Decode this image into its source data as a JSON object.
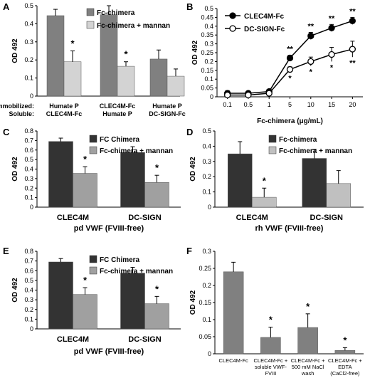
{
  "chart_data": [
    {
      "panel": "A",
      "type": "bar",
      "ylabel": "OD 492",
      "ylim": [
        0,
        0.5
      ],
      "yticks": [
        "0",
        "0.1",
        "0.2",
        "0.3",
        "0.4",
        "0.5"
      ],
      "row_labels": [
        "Immobilized:",
        "Soluble:"
      ],
      "categories": [
        {
          "immobilized": "Humate P",
          "soluble": "CLEC4M-Fc"
        },
        {
          "immobilized": "CLEC4M-Fc",
          "soluble": "Humate P"
        },
        {
          "immobilized": "Humate P",
          "soluble": "DC-SIGN-Fc"
        }
      ],
      "series": [
        {
          "name": "Fc-chimera",
          "color": "#808080",
          "values": [
            0.445,
            0.45,
            0.205
          ],
          "errors": [
            0.035,
            0.05,
            0.05
          ]
        },
        {
          "name": "Fc-chimera + mannan",
          "color": "#d3d3d3",
          "values": [
            0.19,
            0.165,
            0.11
          ],
          "errors": [
            0.06,
            0.025,
            0.04
          ]
        }
      ],
      "annotations": [
        {
          "category": 0,
          "series": 1,
          "text": "*"
        },
        {
          "category": 1,
          "series": 1,
          "text": "*"
        }
      ],
      "legend": "top-right"
    },
    {
      "panel": "B",
      "type": "line",
      "ylabel": "OD 492",
      "xlabel": "Fc-chimera (μg/mL)",
      "ylim": [
        0,
        0.5
      ],
      "yticks": [
        "0",
        "0.05",
        "0.1",
        "0.15",
        "0.2",
        "0.25",
        "0.3",
        "0.35",
        "0.4",
        "0.45",
        "0.5"
      ],
      "x": [
        "0.1",
        "0.5",
        "1",
        "5",
        "10",
        "15",
        "20"
      ],
      "series": [
        {
          "name": "CLEC4M-Fc",
          "marker": "filled",
          "values": [
            0.02,
            0.02,
            0.03,
            0.22,
            0.345,
            0.39,
            0.43
          ],
          "errors": [
            0.015,
            0.01,
            0.01,
            0.015,
            0.02,
            0.02,
            0.02
          ],
          "labels": [
            "",
            "",
            "",
            "**",
            "**",
            "**",
            "**"
          ]
        },
        {
          "name": "DC-SIGN-Fc",
          "marker": "open",
          "values": [
            0.01,
            0.01,
            0.02,
            0.155,
            0.2,
            0.24,
            0.27
          ],
          "errors": [
            0.01,
            0.01,
            0.01,
            0.015,
            0.025,
            0.04,
            0.045
          ],
          "labels": [
            "",
            "",
            "",
            "*",
            "*",
            "*",
            "**"
          ]
        }
      ],
      "legend": "top-left"
    },
    {
      "panel": "C",
      "type": "bar",
      "ylabel": "OD 492",
      "xlabel": "pd VWF (FVIII-free)",
      "ylim": [
        0,
        0.8
      ],
      "yticks": [
        "0",
        "0.1",
        "0.2",
        "0.3",
        "0.4",
        "0.5",
        "0.6",
        "0.7",
        "0.8"
      ],
      "categories": [
        "CLEC4M",
        "DC-SIGN"
      ],
      "series": [
        {
          "name": "FC Chimera",
          "color": "#333333",
          "values": [
            0.69,
            0.575
          ],
          "errors": [
            0.035,
            0.06
          ]
        },
        {
          "name": "Fc-chimera + mannan",
          "color": "#a0a0a0",
          "values": [
            0.355,
            0.26
          ],
          "errors": [
            0.07,
            0.075
          ]
        }
      ],
      "annotations": [
        {
          "category": 0,
          "series": 1,
          "text": "*"
        },
        {
          "category": 1,
          "series": 1,
          "text": "*"
        }
      ],
      "legend": "top-right"
    },
    {
      "panel": "D",
      "type": "bar",
      "ylabel": "OD 492",
      "xlabel": "rh VWF (FVIII-free)",
      "ylim": [
        0,
        0.5
      ],
      "yticks": [
        "0",
        "0.1",
        "0.2",
        "0.3",
        "0.4",
        "0.5"
      ],
      "categories": [
        "CLEC4M",
        "DC-SIGN"
      ],
      "series": [
        {
          "name": "Fc-chimera",
          "color": "#333333",
          "values": [
            0.35,
            0.32
          ],
          "errors": [
            0.08,
            0.06
          ]
        },
        {
          "name": "Fc-chimera + mannan",
          "color": "#c0c0c0",
          "values": [
            0.065,
            0.155
          ],
          "errors": [
            0.06,
            0.085
          ]
        }
      ],
      "annotations": [
        {
          "category": 0,
          "series": 1,
          "text": "*"
        }
      ],
      "legend": "top-right"
    },
    {
      "panel": "E",
      "type": "bar",
      "ylabel": "OD 492",
      "xlabel": "pd VWF (FVIII-free)",
      "ylim": [
        0,
        0.8
      ],
      "yticks": [
        "0",
        "0.1",
        "0.2",
        "0.3",
        "0.4",
        "0.5",
        "0.6",
        "0.7",
        "0.8"
      ],
      "categories": [
        "CLEC4M",
        "DC-SIGN"
      ],
      "series": [
        {
          "name": "FC Chimera",
          "color": "#333333",
          "values": [
            0.69,
            0.575
          ],
          "errors": [
            0.035,
            0.06
          ]
        },
        {
          "name": "Fc-chimera + mannan",
          "color": "#a0a0a0",
          "values": [
            0.355,
            0.26
          ],
          "errors": [
            0.07,
            0.075
          ]
        }
      ],
      "annotations": [
        {
          "category": 0,
          "series": 1,
          "text": "*"
        },
        {
          "category": 1,
          "series": 1,
          "text": "*"
        }
      ],
      "legend": "top-right"
    },
    {
      "panel": "F",
      "type": "bar",
      "ylabel": "OD 492",
      "ylim": [
        0,
        0.3
      ],
      "yticks": [
        "0",
        "0.05",
        "0.1",
        "0.15",
        "0.2",
        "0.25",
        "0.3"
      ],
      "categories": [
        [
          "CLEC4M-Fc"
        ],
        [
          "CLEC4M-Fc +",
          "soluble VWF-",
          "FVIII"
        ],
        [
          "CLEC4M-Fc +",
          "500 mM NaCl",
          "wash"
        ],
        [
          "CLEC4M-Fc +",
          "EDTA",
          "(CaCl2-free)"
        ]
      ],
      "series": [
        {
          "color": "#808080",
          "values": [
            0.24,
            0.048,
            0.077,
            0.01
          ],
          "errors": [
            0.028,
            0.03,
            0.04,
            0.008
          ]
        }
      ],
      "annotations": [
        {
          "category": 1,
          "series": 0,
          "text": "*"
        },
        {
          "category": 2,
          "series": 0,
          "text": "*"
        },
        {
          "category": 3,
          "series": 0,
          "text": "*"
        }
      ]
    }
  ]
}
